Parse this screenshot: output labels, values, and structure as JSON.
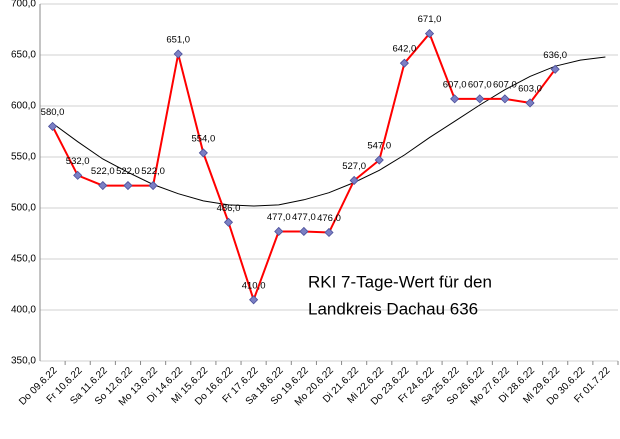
{
  "chart_data": {
    "type": "line",
    "categories": [
      "Do 09.6.22",
      "Fr 10.6.22",
      "Sa 11.6.22",
      "So 12.6.22",
      "Mo 13.6.22",
      "Di 14.6.22",
      "Mi 15.6.22",
      "Do 16.6.22",
      "Fr 17.6.22",
      "Sa 18.6.22",
      "So 19.6.22",
      "Mo 20.6.22",
      "Di 21.6.22",
      "Mi 22.6.22",
      "Do 23.6.22",
      "Fr 24.6.22",
      "Sa 25.6.22",
      "So 26.6.22",
      "Mo 27.6.22",
      "Di 28.6.22",
      "Mi 29.6.22",
      "Do 30.6.22",
      "Fr 01.7.22"
    ],
    "values": [
      580,
      532,
      522,
      522,
      522,
      651,
      554,
      486,
      410,
      477,
      477,
      476,
      527,
      547,
      642,
      671,
      607,
      607,
      607,
      603,
      636,
      null,
      null
    ],
    "value_labels": [
      "580,0",
      "532,0",
      "522,0",
      "522,0",
      "522,0",
      "651,0",
      "554,0",
      "486,0",
      "410,0",
      "477,0",
      "477,0",
      "476,0",
      "527,0",
      "547,0",
      "642,0",
      "671,0",
      "607,0",
      "607,0",
      "607,0",
      "603,0",
      "636,0",
      null,
      null
    ],
    "color": "#ff0000",
    "marker_color": "#7b7fc4",
    "trendline": {
      "color": "#000000",
      "values": [
        583,
        565,
        548,
        535,
        523,
        514,
        507,
        503,
        502,
        503,
        508,
        515,
        525,
        537,
        552,
        569,
        585,
        601,
        616,
        629,
        639,
        645,
        648
      ]
    },
    "ylim": [
      350,
      700
    ],
    "yticks": [
      {
        "value": 350,
        "label": "350,0"
      },
      {
        "value": 400,
        "label": "400,0"
      },
      {
        "value": 450,
        "label": "450,0"
      },
      {
        "value": 500,
        "label": "500,0"
      },
      {
        "value": 550,
        "label": "550,0"
      },
      {
        "value": 600,
        "label": "600,0"
      },
      {
        "value": 650,
        "label": "650,0"
      },
      {
        "value": 700,
        "label": "700,0"
      }
    ],
    "grid": true,
    "annotation": [
      "RKI  7-Tage-Wert  für den",
      "Landkreis Dachau 636"
    ]
  }
}
